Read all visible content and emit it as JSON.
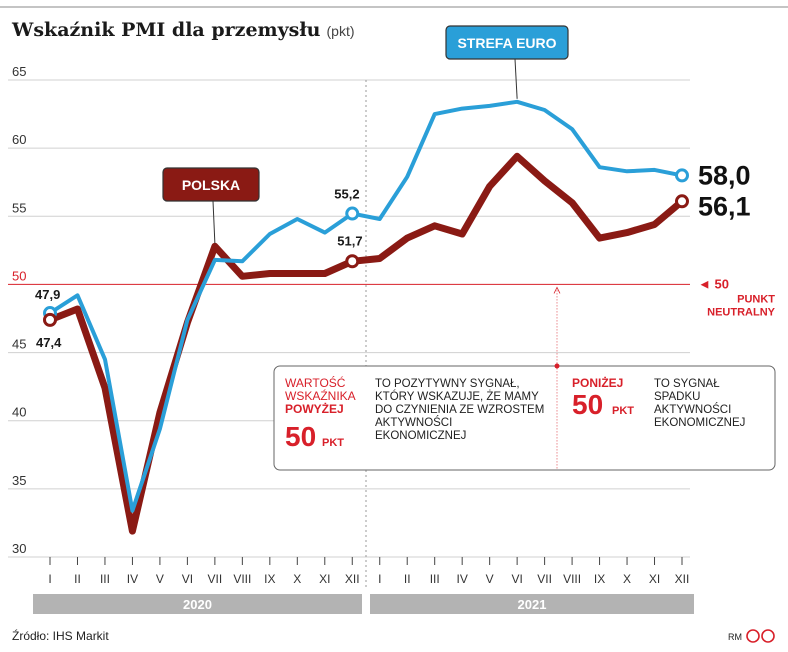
{
  "title": "Wskaźnik PMI dla przemysłu",
  "unit": "(pkt)",
  "chart_data": {
    "type": "line",
    "x": [
      "I",
      "II",
      "III",
      "IV",
      "V",
      "VI",
      "VII",
      "VIII",
      "IX",
      "X",
      "XI",
      "XII",
      "I",
      "II",
      "III",
      "IV",
      "V",
      "VI",
      "VII",
      "VIII",
      "IX",
      "X",
      "XI",
      "XII"
    ],
    "years": [
      {
        "label": "2020",
        "from": 0,
        "to": 11
      },
      {
        "label": "2021",
        "from": 12,
        "to": 23
      }
    ],
    "ylim": [
      30,
      65
    ],
    "yticks": [
      30,
      35,
      40,
      45,
      50,
      55,
      60,
      65
    ],
    "series": [
      {
        "name": "STREFA EURO",
        "color": "#2a9fd8",
        "values": [
          47.9,
          49.2,
          44.5,
          33.4,
          39.4,
          47.4,
          51.8,
          51.7,
          53.7,
          54.8,
          53.8,
          55.2,
          54.8,
          57.9,
          62.5,
          62.9,
          63.1,
          63.4,
          62.8,
          61.4,
          58.6,
          58.3,
          58.4,
          58.0
        ]
      },
      {
        "name": "POLSKA",
        "color": "#8a1a14",
        "values": [
          47.4,
          48.2,
          42.4,
          31.9,
          40.6,
          47.2,
          52.8,
          50.6,
          50.8,
          50.8,
          50.8,
          51.7,
          51.9,
          53.4,
          54.3,
          53.7,
          57.2,
          59.4,
          57.6,
          56.0,
          53.4,
          53.8,
          54.4,
          56.1
        ]
      }
    ],
    "point_labels": [
      {
        "series": 0,
        "index": 0,
        "text": "47,9"
      },
      {
        "series": 1,
        "index": 0,
        "text": "47,4"
      },
      {
        "series": 0,
        "index": 11,
        "text": "55,2"
      },
      {
        "series": 1,
        "index": 11,
        "text": "51,7"
      },
      {
        "series": 0,
        "index": 23,
        "text": "58,0"
      },
      {
        "series": 1,
        "index": 23,
        "text": "56,1"
      }
    ],
    "reference_line": {
      "y": 50,
      "color": "#d8202a",
      "label_value": "◄ 50",
      "label_lines": [
        "PUNKT",
        "NEUTRALNY"
      ]
    },
    "tags": [
      {
        "text": "STREFA EURO",
        "series": 0,
        "index": 17,
        "color": "#2a9fd8"
      },
      {
        "text": "POLSKA",
        "series": 1,
        "index": 6,
        "color": "#8a1a14"
      }
    ]
  },
  "info_box": {
    "left_title": [
      "WARTOŚĆ",
      "WSKAŹNIKA"
    ],
    "left_title_bold": "POWYŻEJ",
    "left_value": "50",
    "left_unit": "PKT",
    "left_desc": [
      "TO POZYTYWNY  SYGNAŁ,",
      "KTÓRY WSKAZUJE, ŻE MAMY",
      "DO CZYNIENIA ZE WZROSTEM",
      "AKTYWNOŚCI",
      "EKONOMICZNEJ"
    ],
    "right_title_bold": "PONIŻEJ",
    "right_value": "50",
    "right_unit": "PKT",
    "right_desc": [
      "TO SYGNAŁ",
      "SPADKU",
      "AKTYWNOŚCI",
      "EKONOMICZNEJ"
    ]
  },
  "source": "Źródło: IHS Markit",
  "credit": "RM"
}
